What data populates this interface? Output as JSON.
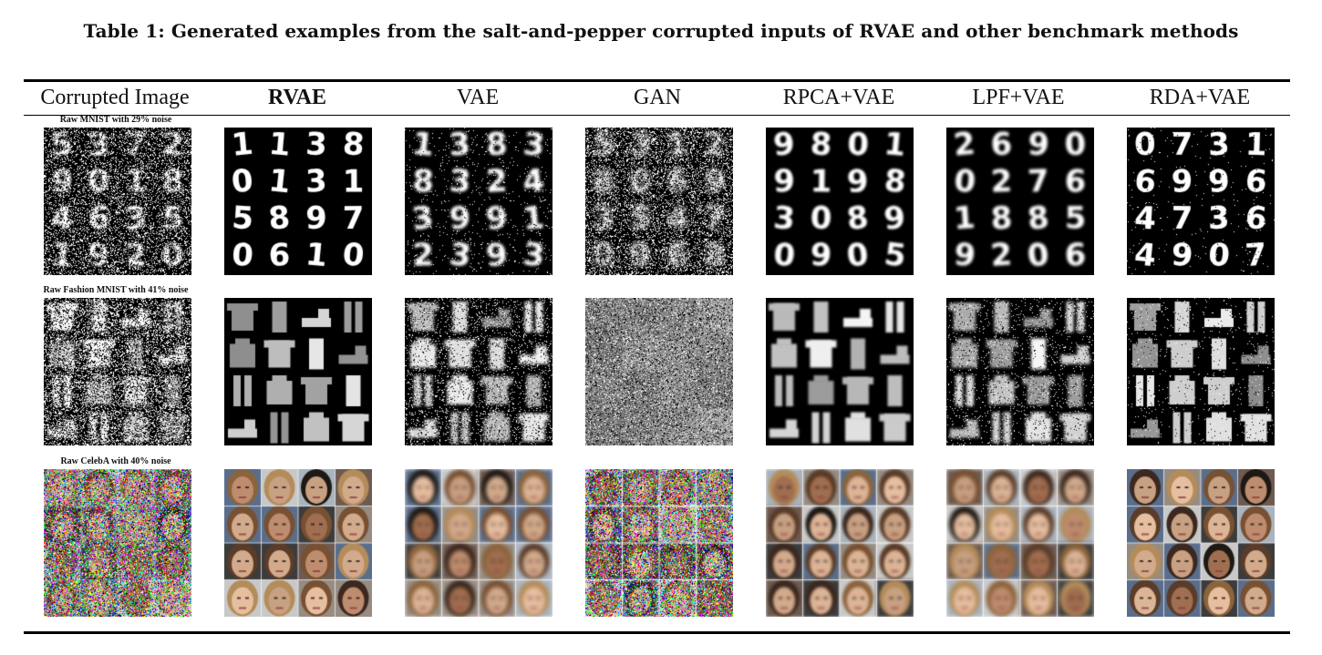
{
  "caption": "Table 1: Generated examples from the salt-and-pepper corrupted inputs of RVAE and other benchmark methods",
  "columns": [
    {
      "label": "Corrupted Image",
      "bold": false
    },
    {
      "label": "RVAE",
      "bold": true
    },
    {
      "label": "VAE",
      "bold": false
    },
    {
      "label": "GAN",
      "bold": false
    },
    {
      "label": "RPCA+VAE",
      "bold": false
    },
    {
      "label": "LPF+VAE",
      "bold": false
    },
    {
      "label": "RDA+VAE",
      "bold": false
    }
  ],
  "rows": [
    {
      "label": "Raw MNIST with 29% noise",
      "dataset": "mnist",
      "cells": {
        "rvae": {
          "kind": "digits",
          "digits": [
            "1",
            "1",
            "3",
            "8",
            "0",
            "1",
            "3",
            "1",
            "5",
            "8",
            "9",
            "7",
            "0",
            "6",
            "1",
            "0"
          ],
          "blur": 0.3,
          "noise": 0
        },
        "vae": {
          "kind": "digits",
          "digits": [
            "1",
            "3",
            "8",
            "3",
            "8",
            "3",
            "2",
            "4",
            "3",
            "9",
            "9",
            "1",
            "2",
            "3",
            "9",
            "3"
          ],
          "blur": 1.6,
          "noise": 0.05
        },
        "gan": {
          "kind": "noise",
          "noise": 0.45
        },
        "rpca": {
          "kind": "digits",
          "digits": [
            "9",
            "8",
            "0",
            "1",
            "9",
            "1",
            "9",
            "8",
            "3",
            "0",
            "8",
            "9",
            "0",
            "9",
            "0",
            "5"
          ],
          "blur": 1.0,
          "noise": 0
        },
        "lpf": {
          "kind": "digits",
          "digits": [
            "2",
            "6",
            "9",
            "0",
            "0",
            "2",
            "7",
            "6",
            "1",
            "8",
            "8",
            "5",
            "9",
            "2",
            "0",
            "6"
          ],
          "blur": 1.8,
          "noise": 0
        },
        "rda": {
          "kind": "digits",
          "digits": [
            "0",
            "7",
            "3",
            "1",
            "6",
            "9",
            "9",
            "6",
            "4",
            "7",
            "3",
            "6",
            "4",
            "9",
            "0",
            "7"
          ],
          "blur": 0.7,
          "noise": 0.02
        }
      }
    },
    {
      "label": "Raw Fashion MNIST with 41% noise",
      "dataset": "fashion",
      "cells": {
        "rvae": {
          "kind": "fashion",
          "blur": 0.3,
          "noise": 0
        },
        "vae": {
          "kind": "fashion",
          "blur": 1.6,
          "noise": 0.18
        },
        "gan": {
          "kind": "flat",
          "noise": 0.25
        },
        "rpca": {
          "kind": "fashion",
          "blur": 1.2,
          "noise": 0
        },
        "lpf": {
          "kind": "fashion",
          "blur": 1.8,
          "noise": 0.1
        },
        "rda": {
          "kind": "fashion",
          "blur": 0.6,
          "noise": 0.04
        }
      }
    },
    {
      "label": "Raw CelebA with 40% noise",
      "dataset": "celeba",
      "cells": {
        "rvae": {
          "kind": "faces",
          "blur": 0.4,
          "noise": 0
        },
        "vae": {
          "kind": "faces",
          "blur": 2.0,
          "noise": 0
        },
        "gan": {
          "kind": "faces-noisy",
          "noise": 0.5
        },
        "rpca": {
          "kind": "faces",
          "blur": 1.6,
          "noise": 0
        },
        "lpf": {
          "kind": "faces",
          "blur": 1.9,
          "noise": 0
        },
        "rda": {
          "kind": "faces",
          "blur": 0.6,
          "noise": 0
        }
      }
    }
  ]
}
